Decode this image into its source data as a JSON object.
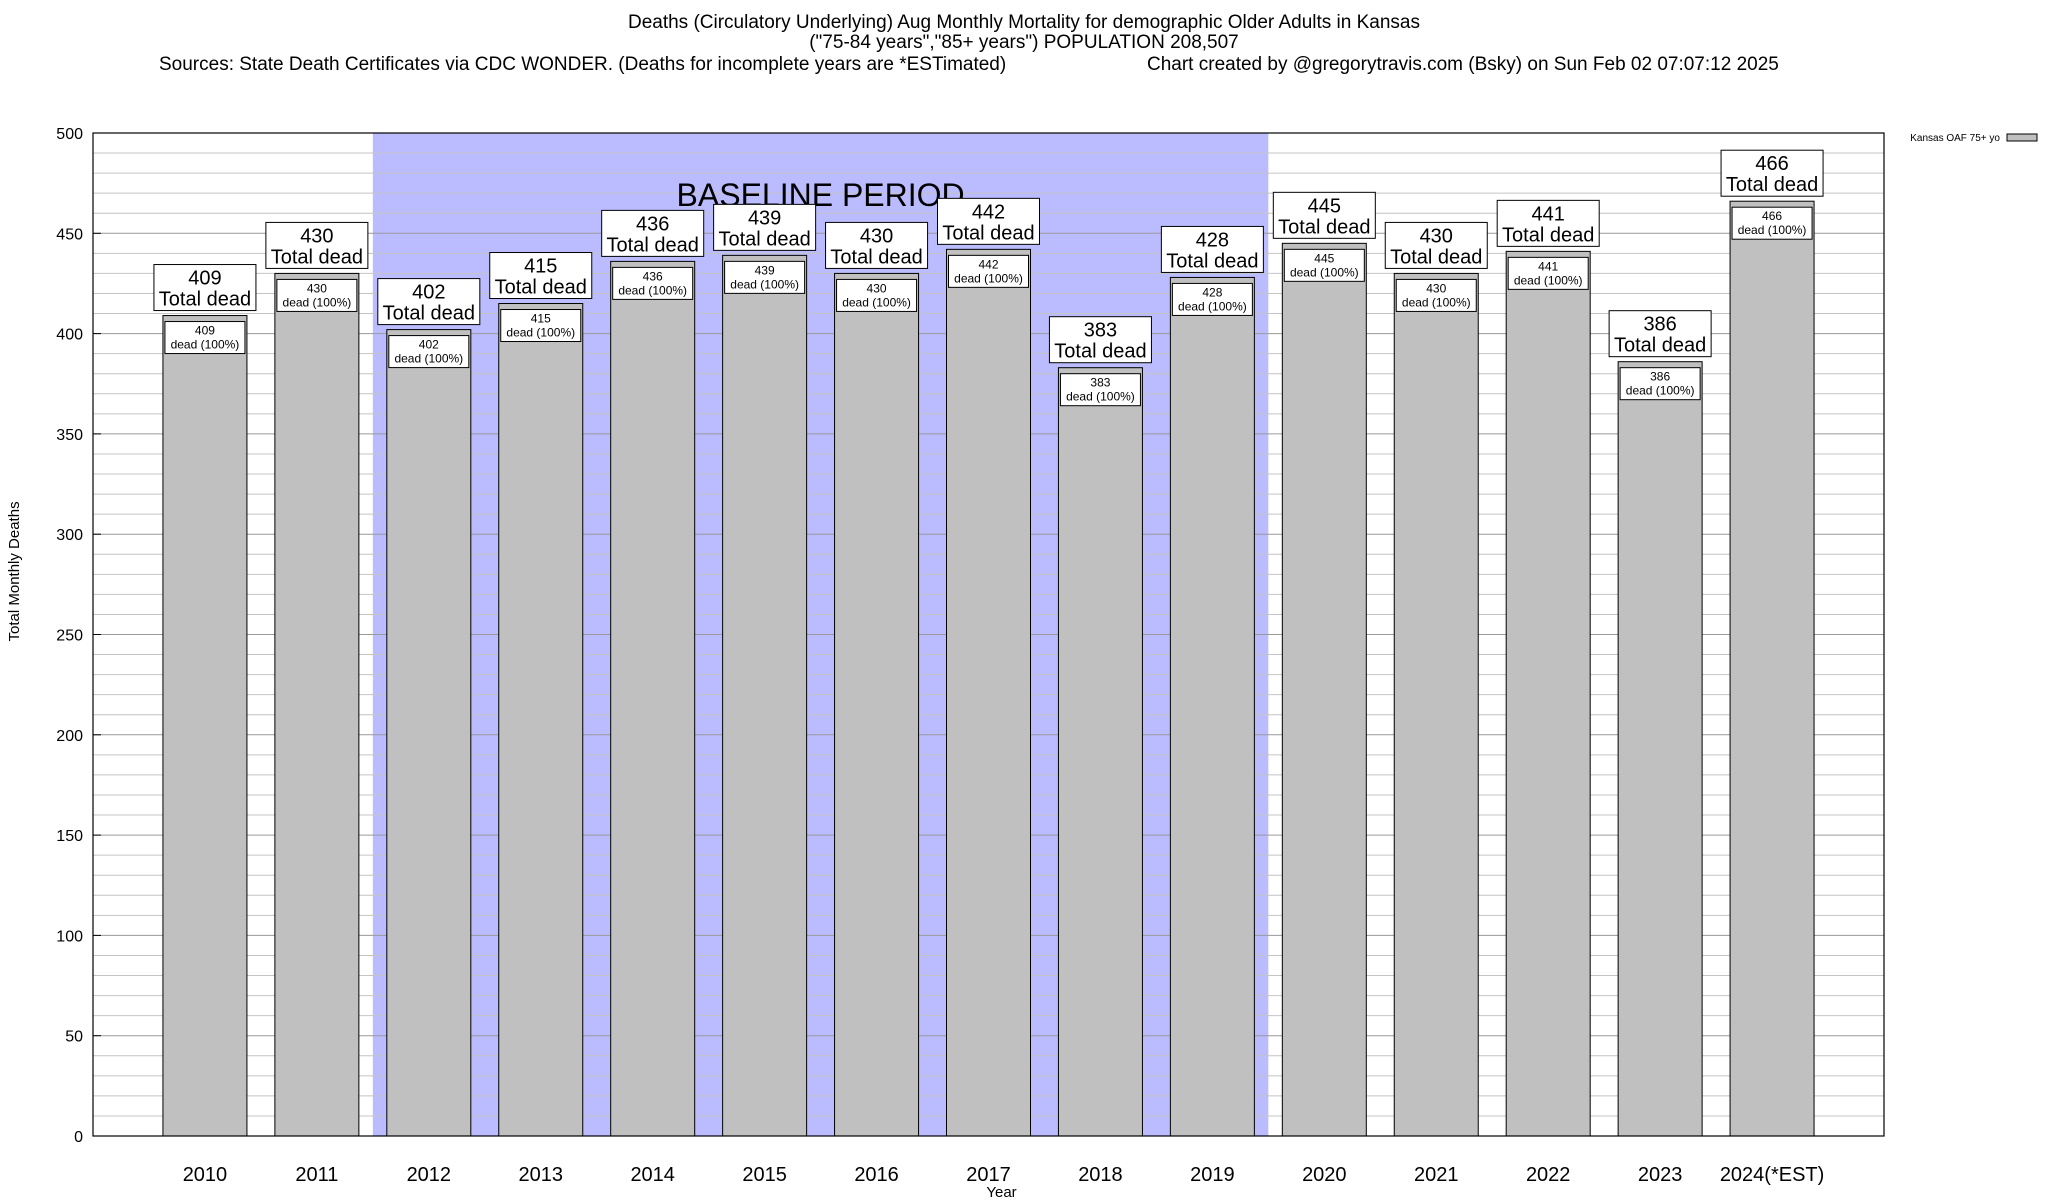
{
  "title": {
    "line1": "Deaths (Circulatory Underlying) Aug Monthly Mortality for demographic Older Adults in Kansas",
    "line2": "(\"75-84 years\",\"85+ years\") POPULATION 208,507",
    "line3_left": "Sources: State Death Certificates via CDC WONDER. (Deaths for incomplete years are *ESTimated)",
    "line3_right": "Chart created by @gregorytravis.com (Bsky) on Sun Feb 02 07:07:12 2025"
  },
  "chart_data": {
    "type": "bar",
    "xlabel": "Year",
    "ylabel": "Total Monthly Deaths",
    "ylim": [
      0,
      500
    ],
    "yticks": [
      0,
      50,
      100,
      150,
      200,
      250,
      300,
      350,
      400,
      450,
      500
    ],
    "grid": true,
    "legend": {
      "position": "top-right",
      "label": "Kansas OAF 75+ yo"
    },
    "annotation": {
      "text": "BASELINE PERIOD",
      "x_from": "2012",
      "x_to": "2019",
      "color": "#BBBBFF"
    },
    "bar_color": "#C0C0C0",
    "categories": [
      "2010",
      "2011",
      "2012",
      "2013",
      "2014",
      "2015",
      "2016",
      "2017",
      "2018",
      "2019",
      "2020",
      "2021",
      "2022",
      "2023",
      "2024(*EST)"
    ],
    "series": [
      {
        "name": "Kansas OAF 75+ yo",
        "values": [
          409,
          430,
          402,
          415,
          436,
          439,
          430,
          442,
          383,
          428,
          445,
          430,
          441,
          386,
          466
        ]
      }
    ],
    "top_label_suffix": "Total dead",
    "inner_label_suffix": "dead (100%)"
  }
}
